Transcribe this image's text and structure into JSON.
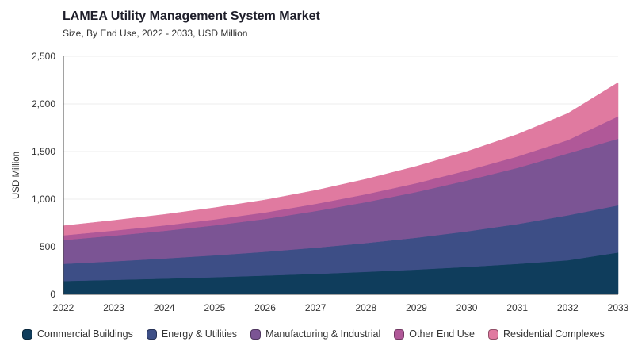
{
  "chart_data": {
    "type": "area",
    "stacked": true,
    "title": "LAMEA Utility Management System Market",
    "subtitle": "Size, By End Use, 2022 - 2033, USD Million",
    "xlabel": "",
    "ylabel": "USD Million",
    "x": [
      "2022",
      "2023",
      "2024",
      "2025",
      "2026",
      "2027",
      "2028",
      "2029",
      "2030",
      "2031",
      "2032",
      "2033"
    ],
    "ylim": [
      0,
      2500
    ],
    "yticks": [
      0,
      500,
      1000,
      1500,
      2000,
      2500
    ],
    "ytick_labels": [
      "0",
      "500",
      "1,000",
      "1,500",
      "2,000",
      "2,500"
    ],
    "grid": true,
    "legend_position": "bottom-left",
    "series": [
      {
        "name": "Commercial Buildings",
        "color": "#0f3d5c",
        "values": [
          140,
          152,
          165,
          180,
          197,
          215,
          236,
          260,
          288,
          320,
          358,
          440
        ]
      },
      {
        "name": "Energy & Utilities",
        "color": "#3d4e86",
        "values": [
          180,
          195,
          212,
          230,
          250,
          275,
          303,
          335,
          373,
          418,
          472,
          495
        ]
      },
      {
        "name": "Manufacturing & Industrial",
        "color": "#7b5494",
        "values": [
          250,
          270,
          290,
          315,
          345,
          385,
          430,
          480,
          535,
          590,
          650,
          700
        ]
      },
      {
        "name": "Other End Use",
        "color": "#b05898",
        "values": [
          50,
          53,
          57,
          62,
          68,
          75,
          83,
          93,
          105,
          120,
          140,
          235
        ]
      },
      {
        "name": "Residential Complexes",
        "color": "#e07aa0",
        "values": [
          100,
          107,
          115,
          123,
          132,
          142,
          158,
          177,
          199,
          232,
          280,
          355
        ]
      }
    ]
  }
}
